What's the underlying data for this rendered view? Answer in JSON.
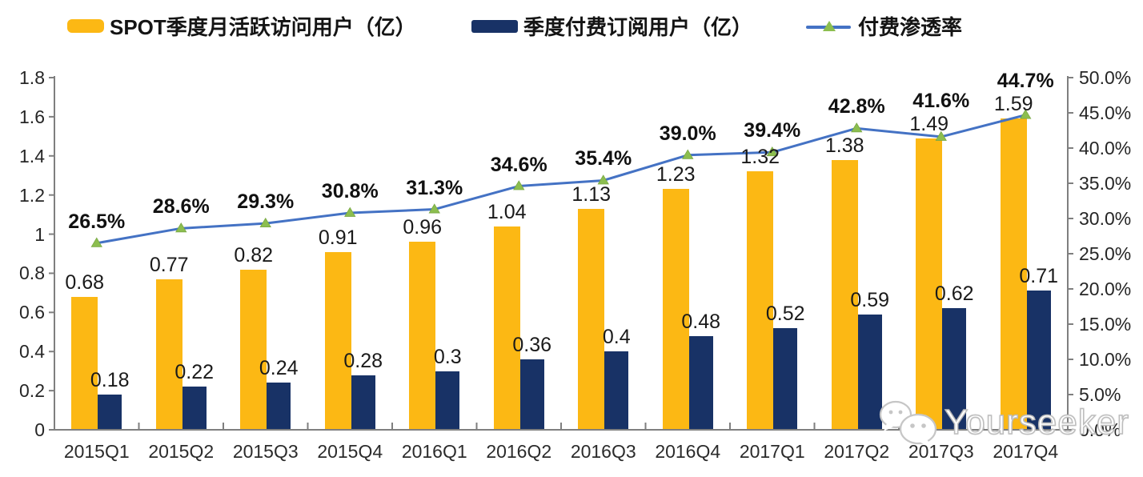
{
  "legend": {
    "items": [
      {
        "label": "SPOT季度月活跃访问用户（亿）",
        "color": "#FCB814",
        "type": "bar"
      },
      {
        "label": "季度付费订阅用户（亿）",
        "color": "#183266",
        "type": "bar"
      },
      {
        "label": "付费渗透率",
        "color": "#4472C4",
        "marker_color": "#8CBE4F",
        "type": "line"
      }
    ]
  },
  "chart_data": {
    "type": "bar+line",
    "categories": [
      "2015Q1",
      "2015Q2",
      "2015Q3",
      "2015Q4",
      "2016Q1",
      "2016Q2",
      "2016Q3",
      "2016Q4",
      "2017Q1",
      "2017Q2",
      "2017Q3",
      "2017Q4"
    ],
    "series": [
      {
        "name": "SPOT季度月活跃访问用户（亿）",
        "type": "bar",
        "axis": "left",
        "color": "#FCB814",
        "values": [
          0.68,
          0.77,
          0.82,
          0.91,
          0.96,
          1.04,
          1.13,
          1.23,
          1.32,
          1.38,
          1.49,
          1.59
        ],
        "labels": [
          "0.68",
          "0.77",
          "0.82",
          "0.91",
          "0.96",
          "1.04",
          "1.13",
          "1.23",
          "1.32",
          "1.38",
          "1.49",
          "1.59"
        ]
      },
      {
        "name": "季度付费订阅用户（亿）",
        "type": "bar",
        "axis": "left",
        "color": "#183266",
        "values": [
          0.18,
          0.22,
          0.24,
          0.28,
          0.3,
          0.36,
          0.4,
          0.48,
          0.52,
          0.59,
          0.62,
          0.71
        ],
        "labels": [
          "0.18",
          "0.22",
          "0.24",
          "0.28",
          "0.3",
          "0.36",
          "0.4",
          "0.48",
          "0.52",
          "0.59",
          "0.62",
          "0.71"
        ]
      },
      {
        "name": "付费渗透率",
        "type": "line",
        "axis": "right",
        "color": "#4472C4",
        "marker": "triangle",
        "marker_color": "#8CBE4F",
        "values": [
          26.5,
          28.6,
          29.3,
          30.8,
          31.3,
          34.6,
          35.4,
          39.0,
          39.4,
          42.8,
          41.6,
          44.7
        ],
        "labels": [
          "26.5%",
          "28.6%",
          "29.3%",
          "30.8%",
          "31.3%",
          "34.6%",
          "35.4%",
          "39.0%",
          "39.4%",
          "42.8%",
          "41.6%",
          "44.7%"
        ]
      }
    ],
    "left_axis": {
      "min": 0,
      "max": 1.8,
      "ticks": [
        "1.8",
        "1.6",
        "1.4",
        "1.2",
        "1",
        "0.8",
        "0.6",
        "0.4",
        "0.2",
        "0"
      ]
    },
    "right_axis": {
      "min": 0,
      "max": 50,
      "ticks": [
        "50.0%",
        "45.0%",
        "40.0%",
        "35.0%",
        "30.0%",
        "25.0%",
        "20.0%",
        "15.0%",
        "10.0%",
        "5.0%",
        "0.0%"
      ]
    },
    "grid": false,
    "legend_position": "top"
  },
  "watermark": {
    "text": "Yourseeker",
    "icon": "wechat-icon"
  }
}
